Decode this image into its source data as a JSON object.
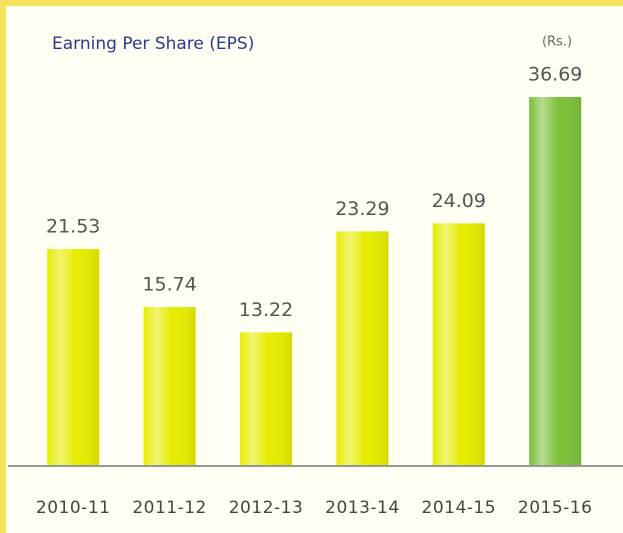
{
  "chart_data": {
    "type": "bar",
    "title": "Earning Per Share (EPS)",
    "unit": "(Rs.)",
    "categories": [
      "2010-11",
      "2011-12",
      "2012-13",
      "2013-14",
      "2014-15",
      "2015-16"
    ],
    "values": [
      21.53,
      15.74,
      13.22,
      23.29,
      24.09,
      36.69
    ],
    "colors": [
      "#e6ec00",
      "#e6ec00",
      "#e6ec00",
      "#e6ec00",
      "#e6ec00",
      "#7cc03a"
    ]
  }
}
